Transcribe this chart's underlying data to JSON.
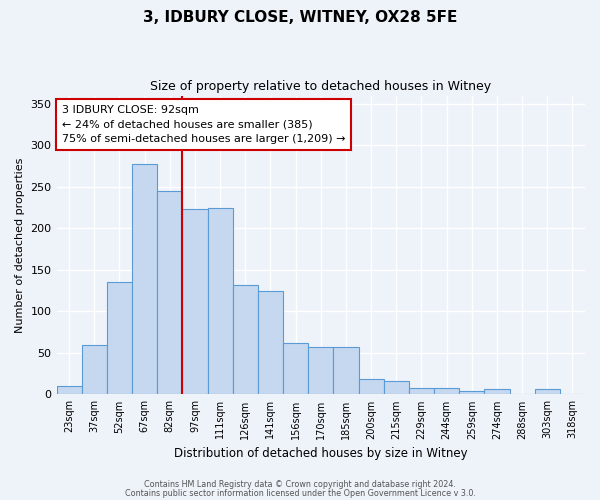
{
  "title": "3, IDBURY CLOSE, WITNEY, OX28 5FE",
  "subtitle": "Size of property relative to detached houses in Witney",
  "xlabel": "Distribution of detached houses by size in Witney",
  "ylabel": "Number of detached properties",
  "bar_labels": [
    "23sqm",
    "37sqm",
    "52sqm",
    "67sqm",
    "82sqm",
    "97sqm",
    "111sqm",
    "126sqm",
    "141sqm",
    "156sqm",
    "170sqm",
    "185sqm",
    "200sqm",
    "215sqm",
    "229sqm",
    "244sqm",
    "259sqm",
    "274sqm",
    "288sqm",
    "303sqm",
    "318sqm"
  ],
  "bar_values": [
    10,
    59,
    135,
    278,
    245,
    223,
    225,
    132,
    125,
    62,
    57,
    57,
    18,
    16,
    8,
    8,
    4,
    6,
    0,
    6,
    0
  ],
  "bar_color": "#c5d8f0",
  "bar_edge_color": "#5b9bd5",
  "vline_color": "#cc0000",
  "vline_bar_idx": 4,
  "annotation_title": "3 IDBURY CLOSE: 92sqm",
  "annotation_line1": "← 24% of detached houses are smaller (385)",
  "annotation_line2": "75% of semi-detached houses are larger (1,209) →",
  "annotation_box_color": "#ffffff",
  "annotation_box_edge": "#cc0000",
  "ylim": [
    0,
    360
  ],
  "yticks": [
    0,
    50,
    100,
    150,
    200,
    250,
    300,
    350
  ],
  "footer1": "Contains HM Land Registry data © Crown copyright and database right 2024.",
  "footer2": "Contains public sector information licensed under the Open Government Licence v 3.0.",
  "bg_color": "#eef2f9",
  "plot_bg_color": "#eef2f9"
}
